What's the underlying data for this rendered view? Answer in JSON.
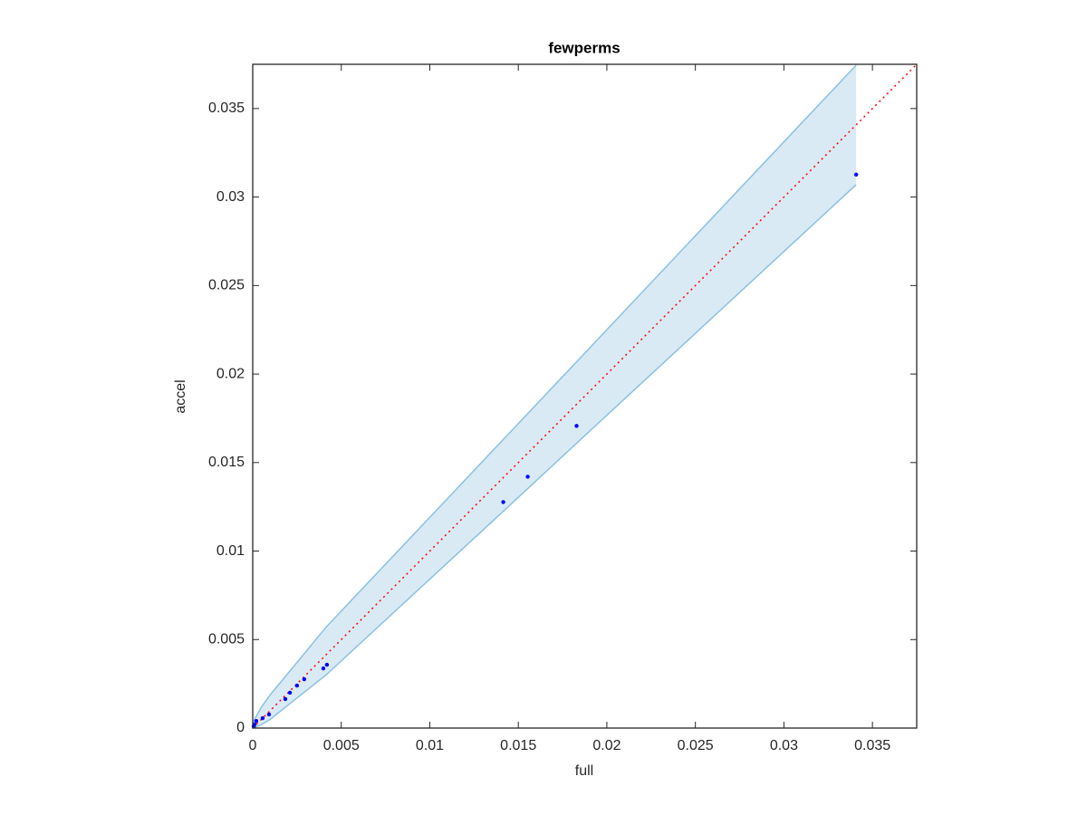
{
  "chart_data": {
    "type": "scatter",
    "title": "fewperms",
    "x_label": "full",
    "y_label": "accel",
    "xlim": [
      0,
      0.0375
    ],
    "ylim": [
      0,
      0.0375
    ],
    "xticks": [
      0,
      0.005,
      0.01,
      0.015,
      0.02,
      0.025,
      0.03,
      0.035
    ],
    "yticks": [
      0,
      0.005,
      0.01,
      0.015,
      0.02,
      0.025,
      0.03,
      0.035
    ],
    "x": [
      0.03408,
      0.01829,
      0.01553,
      0.01415,
      0.00419,
      0.00399,
      0.00291,
      0.0025,
      0.0021,
      0.00184,
      0.00092,
      0.00056,
      0.0002,
      0.0001,
      5e-05
    ],
    "y": [
      0.03127,
      0.01707,
      0.0142,
      0.01277,
      0.00358,
      0.00337,
      0.00276,
      0.0024,
      0.002,
      0.00164,
      0.00077,
      0.00056,
      0.0004,
      0.0002,
      0.0001
    ],
    "color": "#0000ff",
    "band": {
      "x": [
        0,
        0.0005,
        0.001,
        0.002,
        0.00414,
        0.0141,
        0.0183,
        0.03408
      ],
      "upper": [
        0.0003,
        0.0012,
        0.0019,
        0.0031,
        0.0057,
        0.01625,
        0.0207,
        0.03745
      ],
      "lower": [
        0,
        0.0002,
        0.0005,
        0.0013,
        0.003,
        0.0122,
        0.0161,
        0.0307
      ],
      "color": "#8cc0e2"
    },
    "reference_line": {
      "x": [
        0,
        0.0375
      ],
      "y": [
        0,
        0.0375
      ],
      "color": "#ff0000"
    }
  }
}
